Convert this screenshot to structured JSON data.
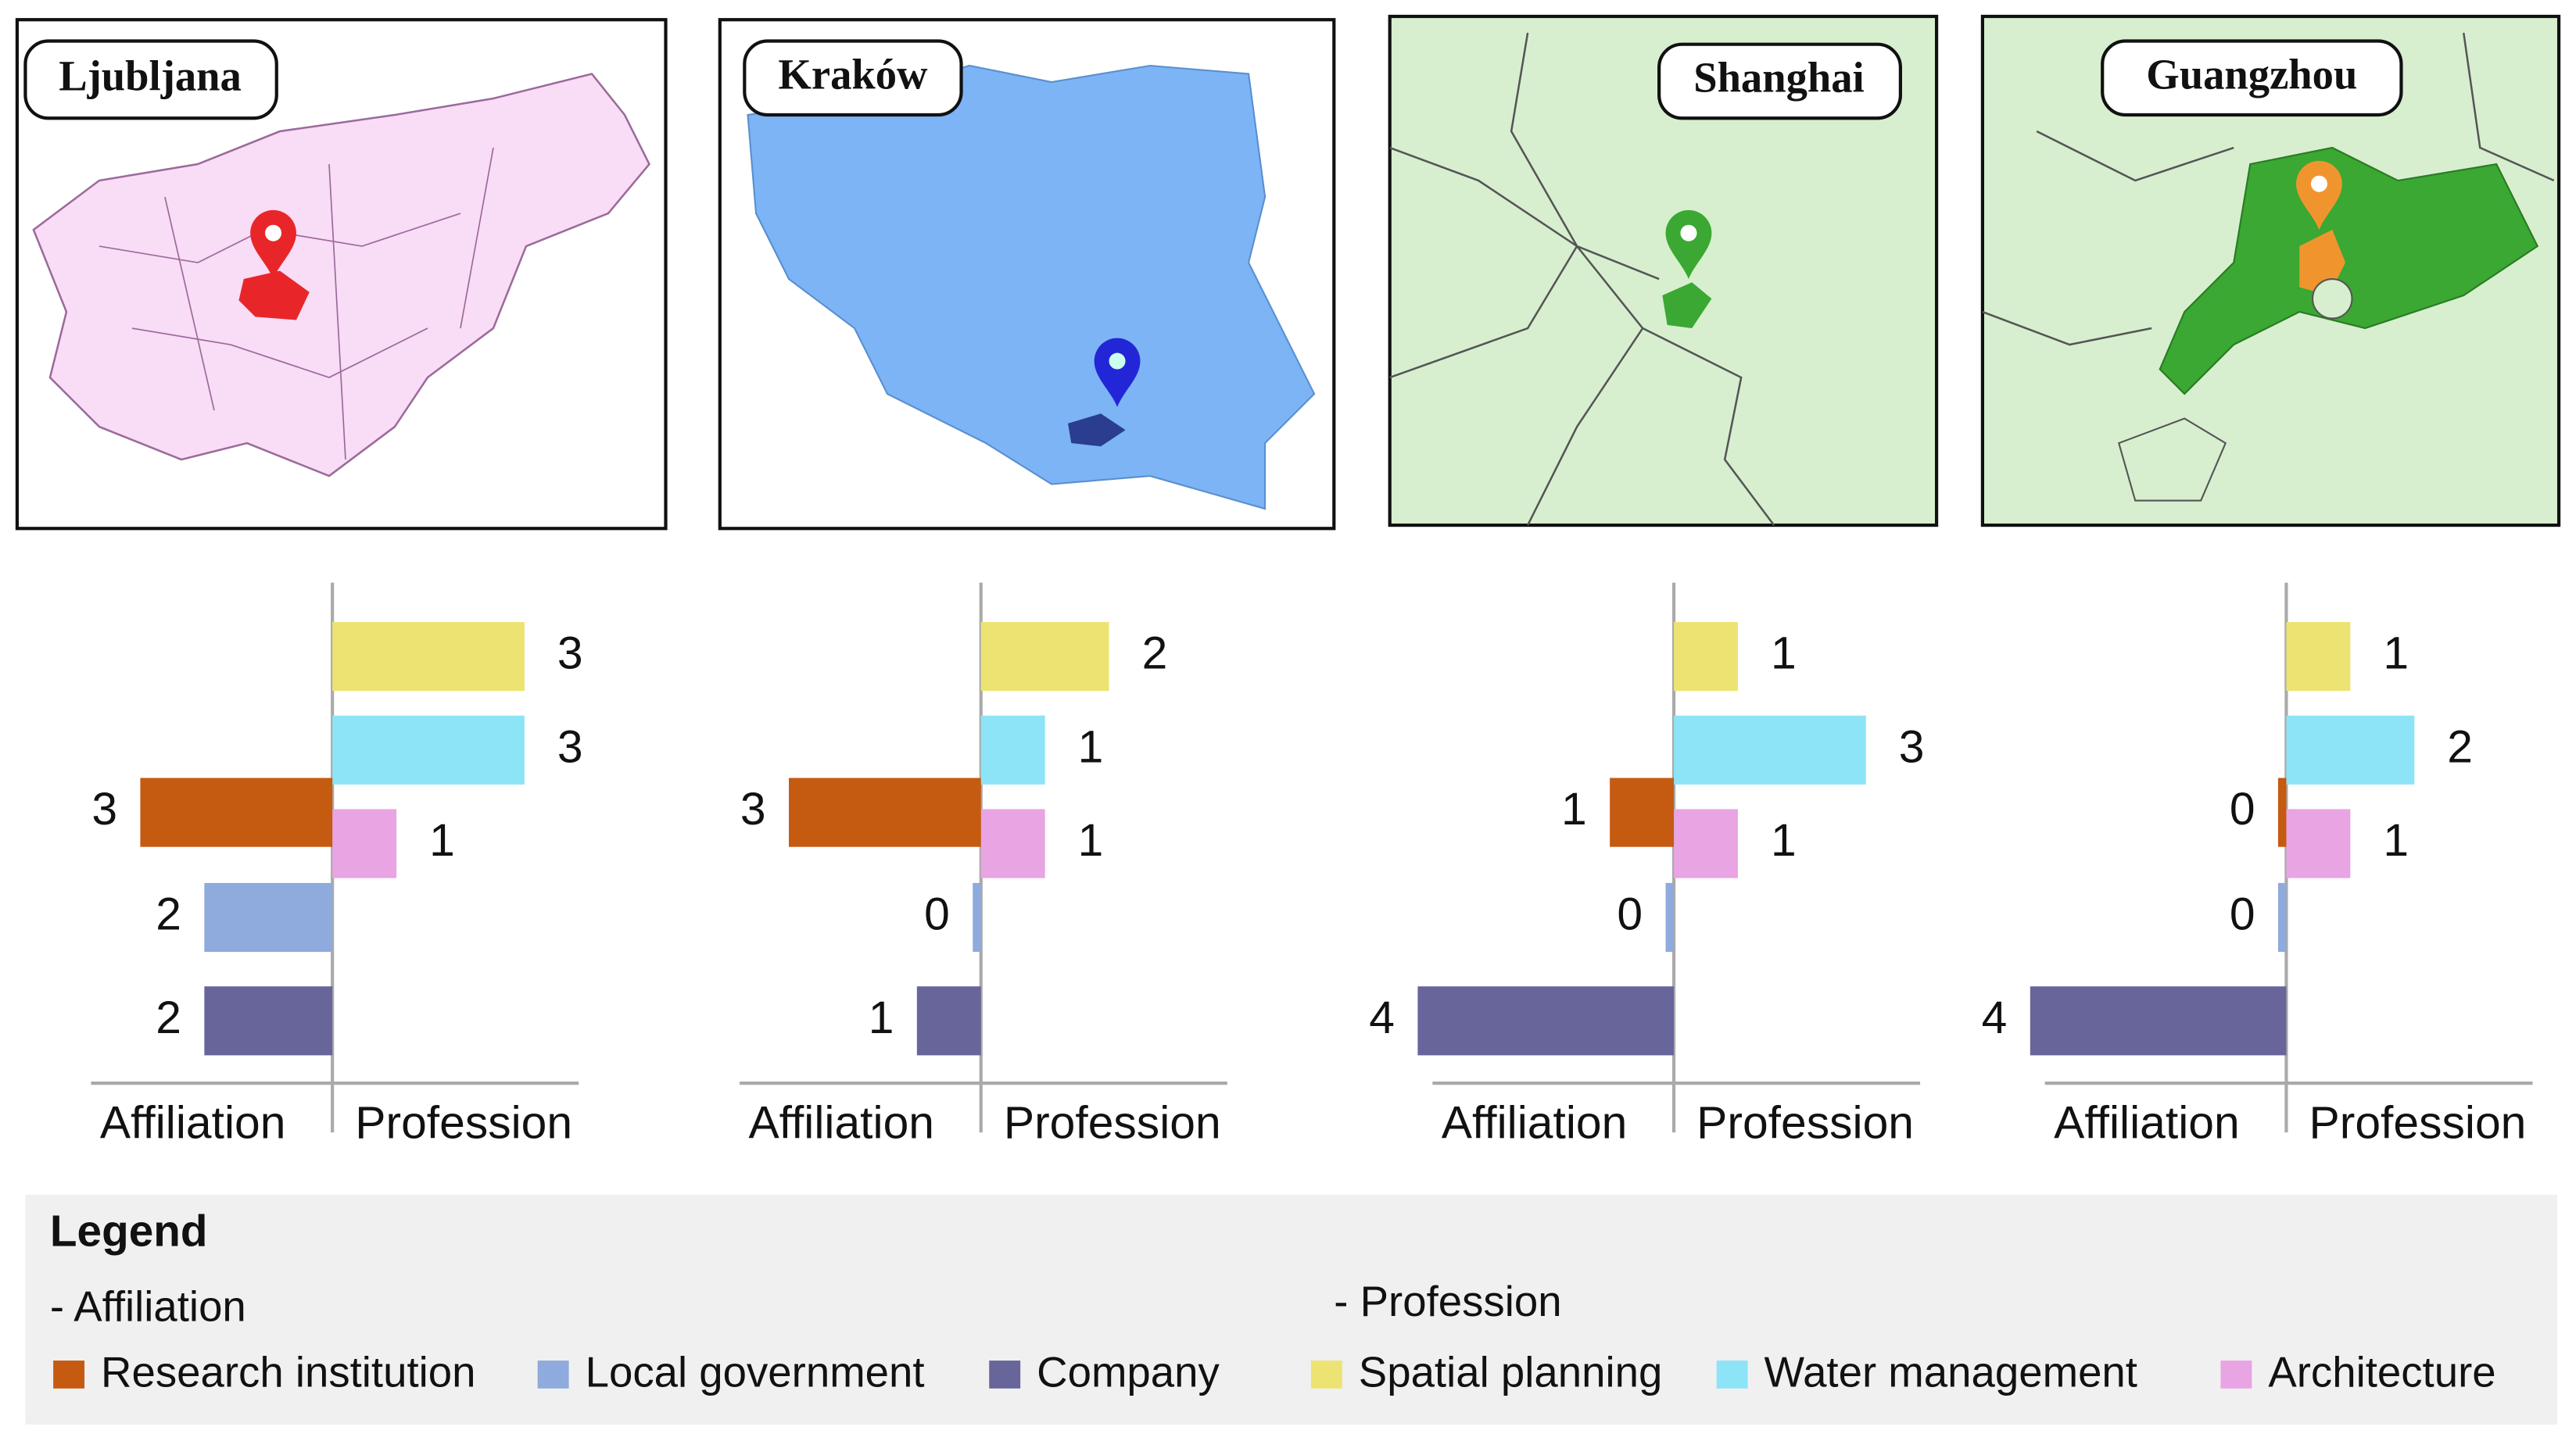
{
  "chart_data": [
    {
      "type": "diverging_bar",
      "title": "Ljubljana",
      "left_axis_label": "Affiliation",
      "right_axis_label": "Profession",
      "affiliation_values": [
        3,
        2,
        2
      ],
      "profession_values": [
        3,
        3,
        1
      ]
    },
    {
      "type": "diverging_bar",
      "title": "Kraków",
      "left_axis_label": "Affiliation",
      "right_axis_label": "Profession",
      "affiliation_values": [
        3,
        0,
        1
      ],
      "profession_values": [
        2,
        1,
        1
      ]
    },
    {
      "type": "diverging_bar",
      "title": "Shanghai",
      "left_axis_label": "Affiliation",
      "right_axis_label": "Profession",
      "affiliation_values": [
        1,
        0,
        4
      ],
      "profession_values": [
        1,
        3,
        1
      ]
    },
    {
      "type": "diverging_bar",
      "title": "Guangzhou",
      "left_axis_label": "Affiliation",
      "right_axis_label": "Profession",
      "affiliation_values": [
        0,
        0,
        4
      ],
      "profession_values": [
        1,
        2,
        1
      ]
    }
  ],
  "legend": {
    "title": "Legend",
    "groups": [
      {
        "label": "- Affiliation",
        "items": [
          {
            "name": "Research institution",
            "color": "#c55a11"
          },
          {
            "name": "Local government",
            "color": "#8faadc"
          },
          {
            "name": "Company",
            "color": "#67659a"
          }
        ]
      },
      {
        "label": "- Profession",
        "items": [
          {
            "name": "Spatial planning",
            "color": "#ede373"
          },
          {
            "name": "Water management",
            "color": "#8de4f7"
          },
          {
            "name": "Architecture",
            "color": "#e8a4e3"
          }
        ]
      }
    ]
  }
}
